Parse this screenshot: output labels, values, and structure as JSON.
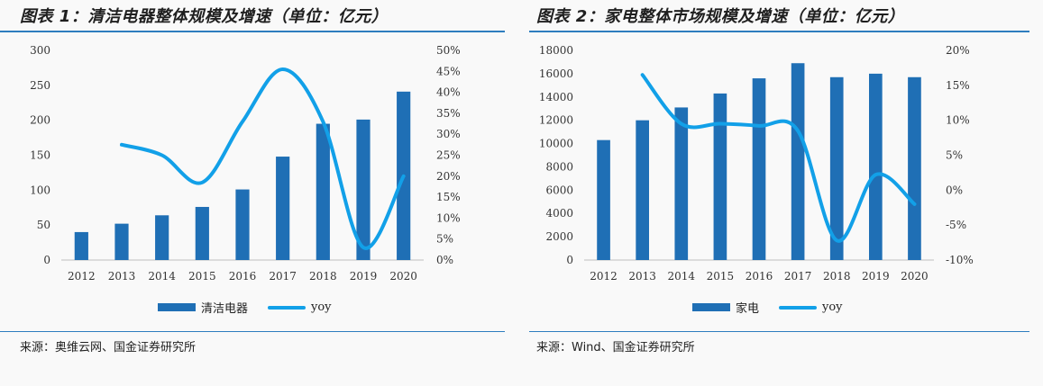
{
  "figures": [
    {
      "title": "图表 1：清洁电器整体规模及增速（单位：亿元）",
      "source": "来源：奥维云网、国金证券研究所",
      "legend": {
        "bar": "清洁电器",
        "line": "yoy"
      },
      "colors": {
        "bar": "#1f6fb5",
        "line": "#12a0e8",
        "rule": "#2e7dbf"
      }
    },
    {
      "title": "图表 2：家电整体市场规模及增速（单位：亿元）",
      "source": "来源：Wind、国金证券研究所",
      "legend": {
        "bar": "家电",
        "line": "yoy"
      },
      "colors": {
        "bar": "#1f6fb5",
        "line": "#12a0e8",
        "rule": "#2e7dbf"
      }
    }
  ],
  "chart_data": [
    {
      "type": "bar",
      "categories": [
        "2012",
        "2013",
        "2014",
        "2015",
        "2016",
        "2017",
        "2018",
        "2019",
        "2020"
      ],
      "series": [
        {
          "name": "清洁电器",
          "type": "bar",
          "axis": "left",
          "values": [
            40,
            52,
            64,
            76,
            101,
            148,
            195,
            201,
            241
          ]
        },
        {
          "name": "yoy",
          "type": "line",
          "axis": "right",
          "values": [
            null,
            0.275,
            0.25,
            0.185,
            0.33,
            0.455,
            0.33,
            0.03,
            0.2
          ]
        }
      ],
      "y_left": {
        "min": 0,
        "max": 300,
        "ticks": [
          "0",
          "50",
          "100",
          "150",
          "200",
          "250",
          "300"
        ]
      },
      "y_right": {
        "min": 0,
        "max": 0.5,
        "ticks": [
          "0%",
          "5%",
          "10%",
          "15%",
          "20%",
          "25%",
          "30%",
          "35%",
          "40%",
          "45%",
          "50%"
        ]
      },
      "grid": false,
      "legend_position": "bottom"
    },
    {
      "type": "bar",
      "categories": [
        "2012",
        "2013",
        "2014",
        "2015",
        "2016",
        "2017",
        "2018",
        "2019",
        "2020"
      ],
      "series": [
        {
          "name": "家电",
          "type": "bar",
          "axis": "left",
          "values": [
            10300,
            12000,
            13100,
            14300,
            15600,
            16900,
            15700,
            16000,
            15700
          ]
        },
        {
          "name": "yoy",
          "type": "line",
          "axis": "right",
          "values": [
            null,
            0.165,
            0.095,
            0.095,
            0.092,
            0.085,
            -0.072,
            0.022,
            -0.02
          ]
        }
      ],
      "y_left": {
        "min": 0,
        "max": 18000,
        "ticks": [
          "0",
          "2000",
          "4000",
          "6000",
          "8000",
          "10000",
          "12000",
          "14000",
          "16000",
          "18000"
        ]
      },
      "y_right": {
        "min": -0.1,
        "max": 0.2,
        "ticks": [
          "-10%",
          "-5%",
          "0%",
          "5%",
          "10%",
          "15%",
          "20%"
        ]
      },
      "grid": false,
      "legend_position": "bottom"
    }
  ]
}
